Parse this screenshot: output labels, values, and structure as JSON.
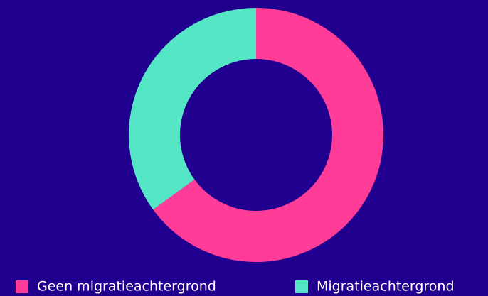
{
  "chart_data": {
    "type": "donut",
    "categories": [
      "Geen migratieachtergrond",
      "Migratieachtergrond"
    ],
    "values": [
      65,
      35
    ],
    "colors": [
      "#ff3d98",
      "#55e6c5"
    ]
  }
}
